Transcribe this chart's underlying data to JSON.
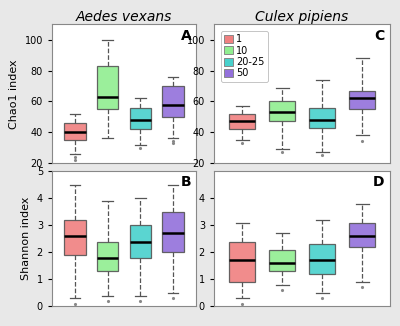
{
  "colors": {
    "1": "#F08080",
    "10": "#90EE90",
    "20-25": "#48D1CC",
    "50": "#9370DB"
  },
  "legend_labels": [
    "1",
    "10",
    "20-25",
    "50"
  ],
  "panel_A": {
    "label": "A",
    "ylim": [
      20,
      110
    ],
    "yticks": [
      20,
      40,
      60,
      80,
      100
    ],
    "boxes": [
      {
        "whislo": 26,
        "q1": 35,
        "med": 40,
        "q3": 46,
        "whishi": 52,
        "fliers": [
          24,
          22
        ]
      },
      {
        "whislo": 36,
        "q1": 55,
        "med": 63,
        "q3": 83,
        "whishi": 100,
        "fliers": []
      },
      {
        "whislo": 32,
        "q1": 42,
        "med": 48,
        "q3": 56,
        "whishi": 62,
        "fliers": [
          30
        ]
      },
      {
        "whislo": 36,
        "q1": 50,
        "med": 58,
        "q3": 70,
        "whishi": 76,
        "fliers": [
          34,
          33
        ]
      }
    ]
  },
  "panel_B": {
    "label": "B",
    "ylim": [
      0,
      5
    ],
    "yticks": [
      0,
      1,
      2,
      3,
      4,
      5
    ],
    "boxes": [
      {
        "whislo": 0.3,
        "q1": 1.9,
        "med": 2.6,
        "q3": 3.2,
        "whishi": 4.5,
        "fliers": [
          0.1
        ]
      },
      {
        "whislo": 0.4,
        "q1": 1.3,
        "med": 1.8,
        "q3": 2.4,
        "whishi": 3.9,
        "fliers": [
          0.2
        ]
      },
      {
        "whislo": 0.4,
        "q1": 1.8,
        "med": 2.4,
        "q3": 3.0,
        "whishi": 4.0,
        "fliers": [
          0.2
        ]
      },
      {
        "whislo": 0.5,
        "q1": 2.0,
        "med": 2.7,
        "q3": 3.5,
        "whishi": 4.5,
        "fliers": [
          0.3
        ]
      }
    ]
  },
  "panel_C": {
    "label": "C",
    "ylim": [
      20,
      110
    ],
    "yticks": [
      20,
      40,
      60,
      80,
      100
    ],
    "boxes": [
      {
        "whislo": 35,
        "q1": 42,
        "med": 47,
        "q3": 52,
        "whishi": 57,
        "fliers": [
          33
        ]
      },
      {
        "whislo": 29,
        "q1": 47,
        "med": 53,
        "q3": 60,
        "whishi": 69,
        "fliers": [
          27
        ]
      },
      {
        "whislo": 27,
        "q1": 43,
        "med": 48,
        "q3": 56,
        "whishi": 74,
        "fliers": [
          25
        ]
      },
      {
        "whislo": 38,
        "q1": 55,
        "med": 62,
        "q3": 67,
        "whishi": 88,
        "fliers": [
          34
        ]
      }
    ]
  },
  "panel_D": {
    "label": "D",
    "ylim": [
      0,
      5
    ],
    "yticks": [
      0,
      1,
      2,
      3,
      4
    ],
    "boxes": [
      {
        "whislo": 0.3,
        "q1": 0.9,
        "med": 1.7,
        "q3": 2.4,
        "whishi": 3.1,
        "fliers": [
          0.1
        ]
      },
      {
        "whislo": 0.8,
        "q1": 1.3,
        "med": 1.6,
        "q3": 2.1,
        "whishi": 2.7,
        "fliers": [
          0.6
        ]
      },
      {
        "whislo": 0.5,
        "q1": 1.2,
        "med": 1.7,
        "q3": 2.3,
        "whishi": 3.2,
        "fliers": [
          0.3
        ]
      },
      {
        "whislo": 0.9,
        "q1": 2.2,
        "med": 2.6,
        "q3": 3.1,
        "whishi": 3.8,
        "fliers": [
          0.7
        ]
      }
    ]
  },
  "title_left": "Aedes vexans",
  "title_right": "Culex pipiens",
  "ylabel_top": "Chao1 index",
  "ylabel_bottom": "Shannon index",
  "background_color": "#e8e8e8",
  "panel_bg": "#ffffff"
}
